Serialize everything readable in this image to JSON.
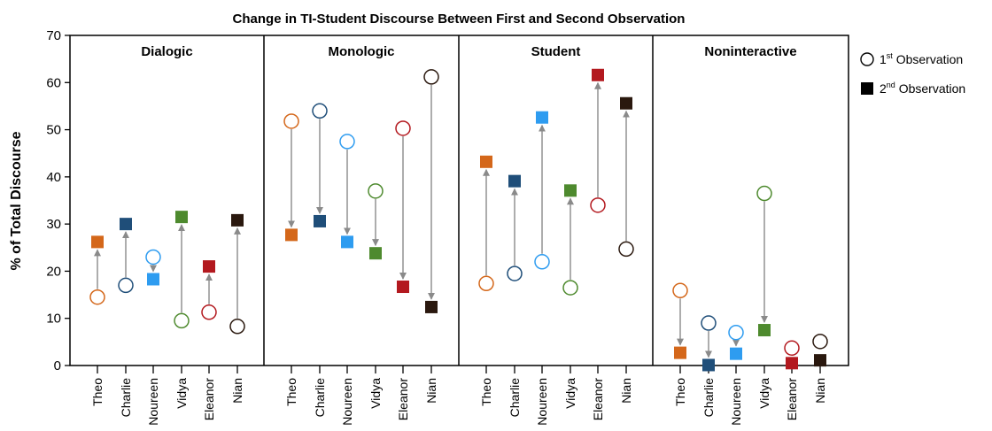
{
  "chart_data": {
    "type": "scatter",
    "title": "Change in TI-Student Discourse Between First and Second Observation",
    "ylabel": "% of Total Discourse",
    "xlabel": "",
    "ylim": [
      0,
      70
    ],
    "yticks": [
      0,
      10,
      20,
      30,
      40,
      50,
      60,
      70
    ],
    "grid": false,
    "legend_position": "right",
    "teachers": [
      "Theo",
      "Charlie",
      "Noureen",
      "Vidya",
      "Eleanor",
      "Nian"
    ],
    "teacher_colors": [
      "#d4671a",
      "#1f4e79",
      "#2e9cf0",
      "#4e8a2e",
      "#b3191f",
      "#2a180e"
    ],
    "legend": {
      "first": {
        "prefix": "1",
        "sup": "st",
        "suffix": " Observation"
      },
      "second": {
        "prefix": "2",
        "sup": "nd",
        "suffix": " Observation"
      }
    },
    "panels": [
      {
        "name": "Dialogic",
        "first": [
          14.5,
          17.0,
          23.0,
          9.5,
          11.3,
          8.3
        ],
        "second": [
          26.2,
          30.0,
          18.3,
          31.5,
          21.0,
          30.8
        ]
      },
      {
        "name": "Monologic",
        "first": [
          51.8,
          54.0,
          47.5,
          37.0,
          50.3,
          61.2
        ],
        "second": [
          27.7,
          30.6,
          26.2,
          23.8,
          16.7,
          12.4
        ]
      },
      {
        "name": "Student",
        "first": [
          17.4,
          19.5,
          22.0,
          16.5,
          34.0,
          24.7
        ],
        "second": [
          43.2,
          39.1,
          52.6,
          37.1,
          61.6,
          55.6
        ]
      },
      {
        "name": "Noninteractive",
        "first": [
          15.9,
          9.0,
          7.0,
          36.5,
          3.7,
          5.1
        ],
        "second": [
          2.7,
          0.1,
          2.5,
          7.5,
          0.5,
          1.1
        ]
      }
    ]
  }
}
